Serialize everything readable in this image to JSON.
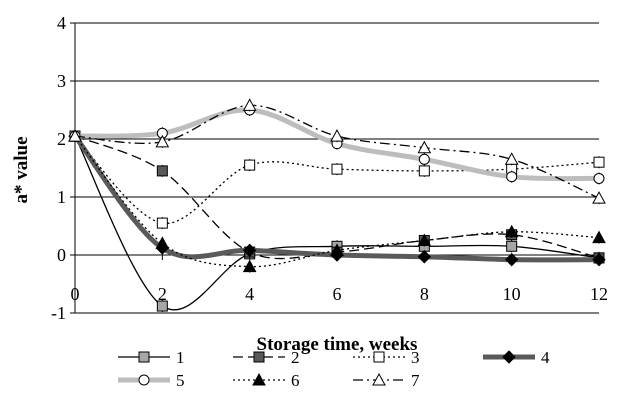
{
  "chart_data": {
    "type": "line",
    "title": "",
    "xlabel": "Storage time, weeks",
    "ylabel": "a* value",
    "xlim": [
      0,
      12
    ],
    "ylim": [
      -1,
      4
    ],
    "x_ticks": [
      0,
      2,
      4,
      6,
      8,
      10,
      12
    ],
    "y_ticks": [
      -1,
      0,
      1,
      2,
      3,
      4
    ],
    "grid": "horizontal",
    "legend_position": "bottom",
    "x": [
      0,
      2,
      4,
      6,
      8,
      10,
      12
    ],
    "series": [
      {
        "name": "1",
        "values": [
          2.05,
          -0.88,
          0.02,
          0.15,
          0.15,
          0.15,
          -0.05
        ],
        "color": "#000000",
        "dash": "solid",
        "marker": "square",
        "marker_fill": "#a6a6a6",
        "thick": false
      },
      {
        "name": "2",
        "values": [
          2.05,
          1.45,
          0.05,
          0.05,
          0.25,
          0.35,
          -0.05
        ],
        "color": "#000000",
        "dash": "long",
        "marker": "square",
        "marker_fill": "#595959",
        "thick": false
      },
      {
        "name": "3",
        "values": [
          2.05,
          0.55,
          1.55,
          1.48,
          1.45,
          1.48,
          1.6
        ],
        "color": "#000000",
        "dash": "dot",
        "marker": "square",
        "marker_fill": "#ffffff",
        "thick": false
      },
      {
        "name": "4",
        "values": [
          2.05,
          0.12,
          0.08,
          0.0,
          -0.03,
          -0.08,
          -0.08
        ],
        "color": "#5a5a5a",
        "dash": "solid",
        "marker": "diamond",
        "marker_fill": "#000000",
        "thick": true
      },
      {
        "name": "5",
        "values": [
          2.05,
          2.1,
          2.5,
          1.92,
          1.65,
          1.35,
          1.32
        ],
        "color": "#bdbdbd",
        "dash": "solid",
        "marker": "circle",
        "marker_fill": "#ffffff",
        "thick": true
      },
      {
        "name": "6",
        "values": [
          2.05,
          0.2,
          -0.2,
          0.08,
          0.25,
          0.4,
          0.3
        ],
        "color": "#000000",
        "dash": "dot",
        "marker": "triangle",
        "marker_fill": "#000000",
        "thick": false
      },
      {
        "name": "7",
        "values": [
          2.05,
          1.95,
          2.58,
          2.05,
          1.85,
          1.65,
          0.98
        ],
        "color": "#000000",
        "dash": "dashdot",
        "marker": "triangle",
        "marker_fill": "#ffffff",
        "thick": false
      }
    ]
  }
}
